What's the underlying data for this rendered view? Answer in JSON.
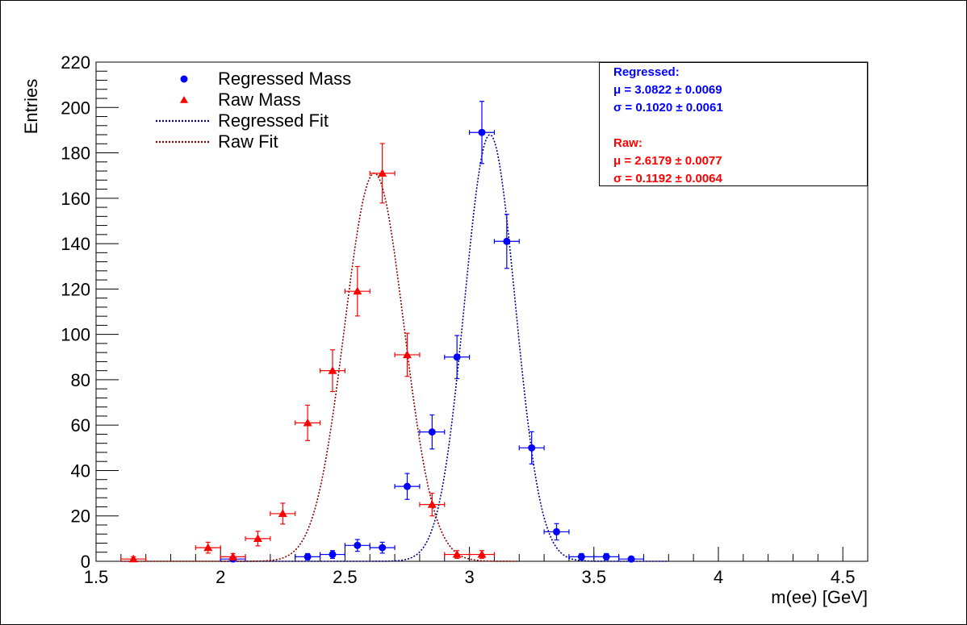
{
  "chart_data": {
    "type": "scatter",
    "title": "",
    "xlabel": "m(ee) [GeV]",
    "ylabel": "Entries",
    "xlim": [
      1.5,
      4.6
    ],
    "ylim": [
      0,
      220
    ],
    "x_ticks": [
      "1.5",
      "2",
      "2.5",
      "3",
      "3.5",
      "4",
      "4.5"
    ],
    "y_ticks": [
      "0",
      "20",
      "40",
      "60",
      "80",
      "100",
      "120",
      "140",
      "160",
      "180",
      "200",
      "220"
    ],
    "bin_half_width": 0.05,
    "series": [
      {
        "name": "Regressed Mass",
        "marker": "circle",
        "color": "#0000ff",
        "points": [
          {
            "x": 2.05,
            "y": 1,
            "err": 1
          },
          {
            "x": 2.35,
            "y": 2,
            "err": 1.4
          },
          {
            "x": 2.45,
            "y": 3,
            "err": 1.7
          },
          {
            "x": 2.55,
            "y": 7,
            "err": 2.6
          },
          {
            "x": 2.65,
            "y": 6,
            "err": 2.4
          },
          {
            "x": 2.75,
            "y": 33,
            "err": 5.7
          },
          {
            "x": 2.85,
            "y": 57,
            "err": 7.5
          },
          {
            "x": 2.95,
            "y": 90,
            "err": 9.5
          },
          {
            "x": 3.05,
            "y": 189,
            "err": 13.7
          },
          {
            "x": 3.15,
            "y": 141,
            "err": 11.9
          },
          {
            "x": 3.25,
            "y": 50,
            "err": 7.1
          },
          {
            "x": 3.35,
            "y": 13,
            "err": 3.6
          },
          {
            "x": 3.45,
            "y": 2,
            "err": 1.4
          },
          {
            "x": 3.55,
            "y": 2,
            "err": 1.4
          },
          {
            "x": 3.65,
            "y": 1,
            "err": 1
          }
        ]
      },
      {
        "name": "Raw Mass",
        "marker": "triangle",
        "color": "#ff0000",
        "points": [
          {
            "x": 1.65,
            "y": 1,
            "err": 1
          },
          {
            "x": 1.95,
            "y": 6,
            "err": 2.4
          },
          {
            "x": 2.05,
            "y": 2,
            "err": 1.4
          },
          {
            "x": 2.15,
            "y": 10,
            "err": 3.2
          },
          {
            "x": 2.25,
            "y": 21,
            "err": 4.6
          },
          {
            "x": 2.35,
            "y": 61,
            "err": 7.8
          },
          {
            "x": 2.45,
            "y": 84,
            "err": 9.2
          },
          {
            "x": 2.55,
            "y": 119,
            "err": 10.9
          },
          {
            "x": 2.65,
            "y": 171,
            "err": 13.1
          },
          {
            "x": 2.75,
            "y": 91,
            "err": 9.5
          },
          {
            "x": 2.85,
            "y": 25,
            "err": 5
          },
          {
            "x": 2.95,
            "y": 3,
            "err": 1.7
          },
          {
            "x": 3.05,
            "y": 3,
            "err": 1.7
          }
        ]
      }
    ],
    "fits": [
      {
        "name": "Regressed Fit",
        "color": "#00008b",
        "mean": 3.0822,
        "sigma": 0.102,
        "peak": 188,
        "x_range": [
          2.0,
          3.8
        ]
      },
      {
        "name": "Raw Fit",
        "color": "#8b0000",
        "mean": 2.6179,
        "sigma": 0.1192,
        "peak": 171,
        "x_range": [
          1.6,
          3.2
        ]
      }
    ],
    "legend_position": "top-left",
    "grid": false
  },
  "legend": {
    "items": [
      {
        "label": "Regressed Mass"
      },
      {
        "label": "Raw Mass"
      },
      {
        "label": "Regressed Fit"
      },
      {
        "label": "Raw Fit"
      }
    ]
  },
  "stats": {
    "regressed_title": "Regressed:",
    "regressed_mu": "μ = 3.0822 ± 0.0069",
    "regressed_sigma": "σ = 0.1020 ± 0.0061",
    "raw_title": "Raw:",
    "raw_mu": "μ = 2.6179 ± 0.0077",
    "raw_sigma": "σ = 0.1192 ± 0.0064",
    "regressed_color": "#0000ff",
    "raw_color": "#ff0000"
  }
}
